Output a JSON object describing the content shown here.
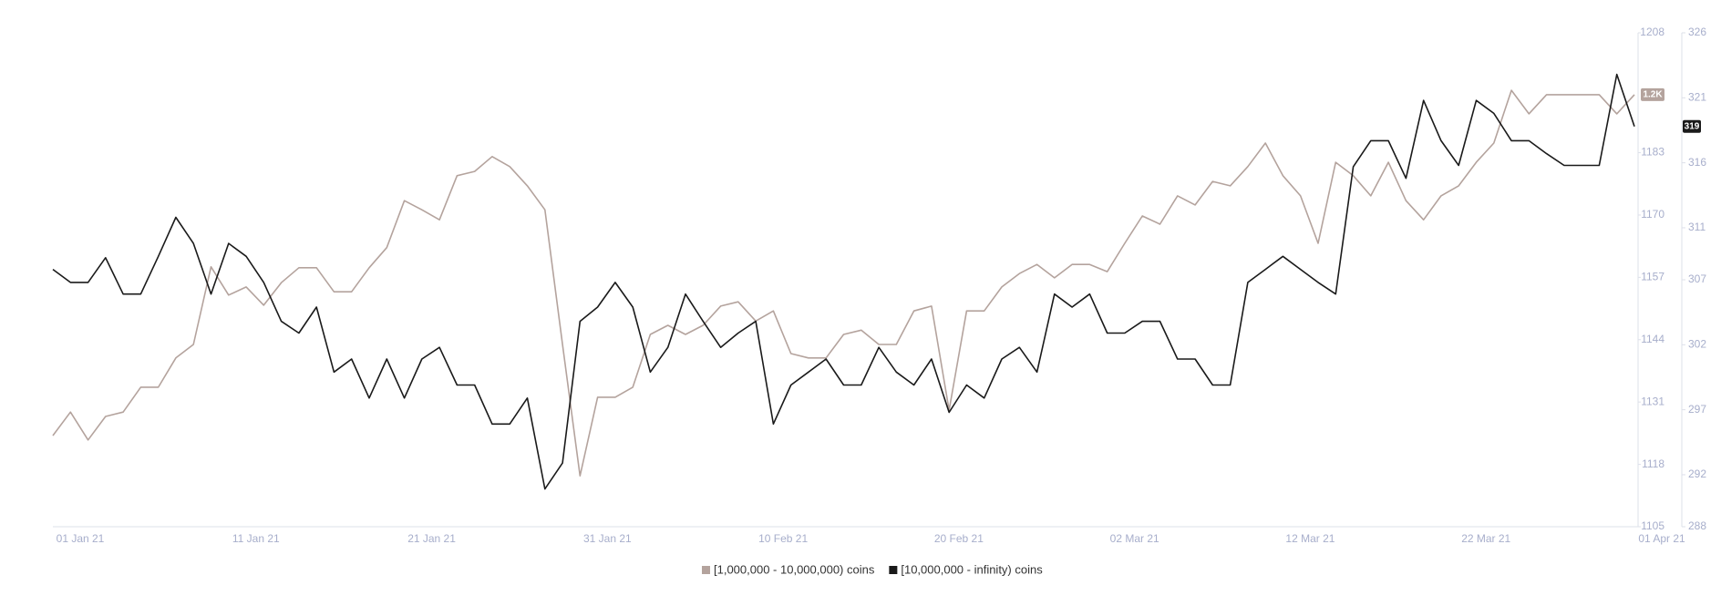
{
  "chart_data": {
    "type": "line",
    "x": [
      "01 Jan 21",
      "02 Jan 21",
      "03 Jan 21",
      "04 Jan 21",
      "05 Jan 21",
      "06 Jan 21",
      "07 Jan 21",
      "08 Jan 21",
      "09 Jan 21",
      "10 Jan 21",
      "11 Jan 21",
      "12 Jan 21",
      "13 Jan 21",
      "14 Jan 21",
      "15 Jan 21",
      "16 Jan 21",
      "17 Jan 21",
      "18 Jan 21",
      "19 Jan 21",
      "20 Jan 21",
      "21 Jan 21",
      "22 Jan 21",
      "23 Jan 21",
      "24 Jan 21",
      "25 Jan 21",
      "26 Jan 21",
      "27 Jan 21",
      "28 Jan 21",
      "29 Jan 21",
      "30 Jan 21",
      "31 Jan 21",
      "01 Feb 21",
      "02 Feb 21",
      "03 Feb 21",
      "04 Feb 21",
      "05 Feb 21",
      "06 Feb 21",
      "07 Feb 21",
      "08 Feb 21",
      "09 Feb 21",
      "10 Feb 21",
      "11 Feb 21",
      "12 Feb 21",
      "13 Feb 21",
      "14 Feb 21",
      "15 Feb 21",
      "16 Feb 21",
      "17 Feb 21",
      "18 Feb 21",
      "19 Feb 21",
      "20 Feb 21",
      "21 Feb 21",
      "22 Feb 21",
      "23 Feb 21",
      "24 Feb 21",
      "25 Feb 21",
      "26 Feb 21",
      "27 Feb 21",
      "28 Feb 21",
      "01 Mar 21",
      "02 Mar 21",
      "03 Mar 21",
      "04 Mar 21",
      "05 Mar 21",
      "06 Mar 21",
      "07 Mar 21",
      "08 Mar 21",
      "09 Mar 21",
      "10 Mar 21",
      "11 Mar 21",
      "12 Mar 21",
      "13 Mar 21",
      "14 Mar 21",
      "15 Mar 21",
      "16 Mar 21",
      "17 Mar 21",
      "18 Mar 21",
      "19 Mar 21",
      "20 Mar 21",
      "21 Mar 21",
      "22 Mar 21",
      "23 Mar 21",
      "24 Mar 21",
      "25 Mar 21",
      "26 Mar 21",
      "27 Mar 21",
      "28 Mar 21",
      "29 Mar 21",
      "30 Mar 21",
      "31 Mar 21",
      "01 Apr 21"
    ],
    "xtick_step": 10,
    "series": [
      {
        "name": "[1,000,000 - 10,000,000) coins",
        "color": "#b4a39d",
        "axis": "y",
        "badge": "1.2K",
        "values": [
          1124.0,
          1128.9,
          1123.1,
          1128.0,
          1128.9,
          1134.1,
          1134.1,
          1140.2,
          1143.0,
          1159.2,
          1153.3,
          1155.0,
          1151.2,
          1155.9,
          1159.0,
          1159.0,
          1154.0,
          1154.0,
          1159.0,
          1163.2,
          1173.0,
          1171.1,
          1169.0,
          1178.2,
          1179.1,
          1182.2,
          1180.1,
          1176.1,
          1171.1,
          1143.0,
          1115.6,
          1132.0,
          1132.0,
          1134.1,
          1145.1,
          1147.0,
          1145.1,
          1147.0,
          1151.0,
          1151.9,
          1147.9,
          1150.0,
          1141.1,
          1140.2,
          1140.2,
          1145.1,
          1146.0,
          1143.0,
          1143.0,
          1150.0,
          1151.0,
          1129.3,
          1150.0,
          1150.0,
          1155.0,
          1157.8,
          1159.7,
          1156.9,
          1159.7,
          1159.7,
          1158.2,
          1164.1,
          1169.8,
          1168.1,
          1174.0,
          1172.1,
          1177.0,
          1176.1,
          1180.1,
          1185.0,
          1178.2,
          1174.0,
          1164.1,
          1181.0,
          1178.2,
          1174.0,
          1181.0,
          1173.0,
          1169.0,
          1174.0,
          1176.1,
          1181.0,
          1185.0,
          1196.0,
          1191.1,
          1195.1,
          1195.1,
          1195.1,
          1195.1,
          1191.1,
          1195.1
        ]
      },
      {
        "name": "[10,000,000 - infinity) coins",
        "color": "#1a1a1a",
        "axis": "y2",
        "badge": "319",
        "values": [
          307.8,
          306.8,
          306.8,
          308.7,
          305.9,
          305.9,
          308.8,
          311.8,
          309.8,
          305.9,
          309.8,
          308.8,
          306.8,
          303.8,
          302.9,
          304.9,
          299.9,
          300.9,
          297.9,
          300.9,
          297.9,
          300.9,
          301.8,
          298.9,
          298.9,
          295.9,
          295.9,
          297.9,
          290.9,
          292.9,
          303.8,
          304.9,
          306.8,
          304.9,
          299.9,
          301.8,
          305.9,
          303.8,
          301.8,
          302.9,
          303.8,
          295.9,
          298.9,
          299.9,
          300.9,
          298.9,
          298.9,
          301.8,
          299.9,
          298.9,
          300.9,
          296.8,
          298.9,
          297.9,
          300.9,
          301.8,
          299.9,
          305.9,
          304.9,
          305.9,
          302.9,
          302.9,
          303.8,
          303.8,
          300.9,
          300.9,
          298.9,
          298.9,
          306.8,
          307.8,
          308.8,
          307.8,
          306.8,
          305.9,
          315.7,
          317.7,
          317.7,
          314.8,
          320.8,
          317.7,
          315.8,
          320.8,
          319.8,
          317.7,
          317.7,
          316.7,
          315.8,
          315.8,
          315.8,
          322.8,
          318.8
        ]
      }
    ],
    "ylim": [
      1105,
      1208
    ],
    "yticks": [
      1105,
      1118,
      1131,
      1144,
      1157,
      1170,
      1183,
      1208
    ],
    "y2lim": [
      288,
      326
    ],
    "y2ticks": [
      288,
      292,
      297,
      302,
      307,
      311,
      316,
      321,
      326
    ]
  }
}
